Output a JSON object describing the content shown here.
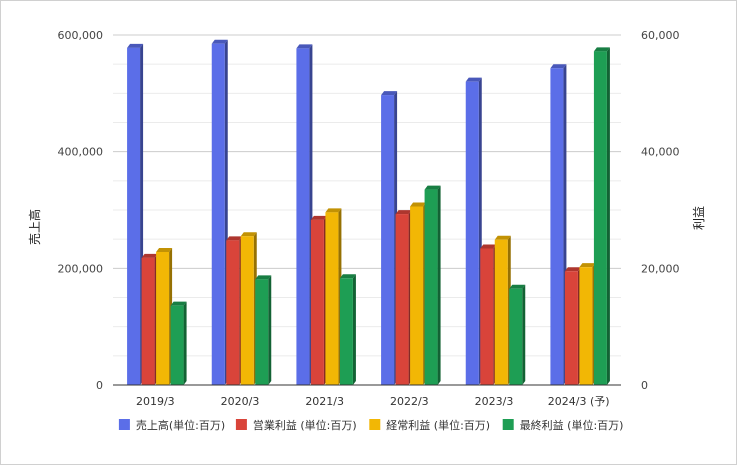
{
  "chart_data": {
    "type": "bar",
    "categories": [
      "2019/3",
      "2020/3",
      "2021/3",
      "2022/3",
      "2023/3",
      "2024/3 (予)"
    ],
    "left_axis": {
      "label": "売上高",
      "range": [
        0,
        600000
      ],
      "ticks": [
        "0",
        "200,000",
        "400,000",
        "600,000"
      ]
    },
    "right_axis": {
      "label": "利益",
      "range": [
        0,
        60000
      ],
      "ticks": [
        "0",
        "20,000",
        "40,000",
        "60,000"
      ]
    },
    "grid": true,
    "legend_position": "bottom",
    "series": [
      {
        "name": "売上高(単位:百万)",
        "axis": "left",
        "color": "#5b6ee8",
        "values": [
          578000,
          585000,
          577000,
          497000,
          520000,
          543000
        ]
      },
      {
        "name": "営業利益 (単位:百万)",
        "axis": "right",
        "color": "#d9443a",
        "values": [
          21800,
          24800,
          28300,
          29300,
          23400,
          19500
        ]
      },
      {
        "name": "経常利益 (単位:百万)",
        "axis": "right",
        "color": "#f2b705",
        "values": [
          22800,
          25500,
          29600,
          30600,
          24900,
          20200
        ]
      },
      {
        "name": "最終利益 (単位:百万)",
        "axis": "right",
        "color": "#1e9e54",
        "values": [
          13600,
          18100,
          18300,
          33500,
          16500,
          57200
        ]
      }
    ]
  }
}
